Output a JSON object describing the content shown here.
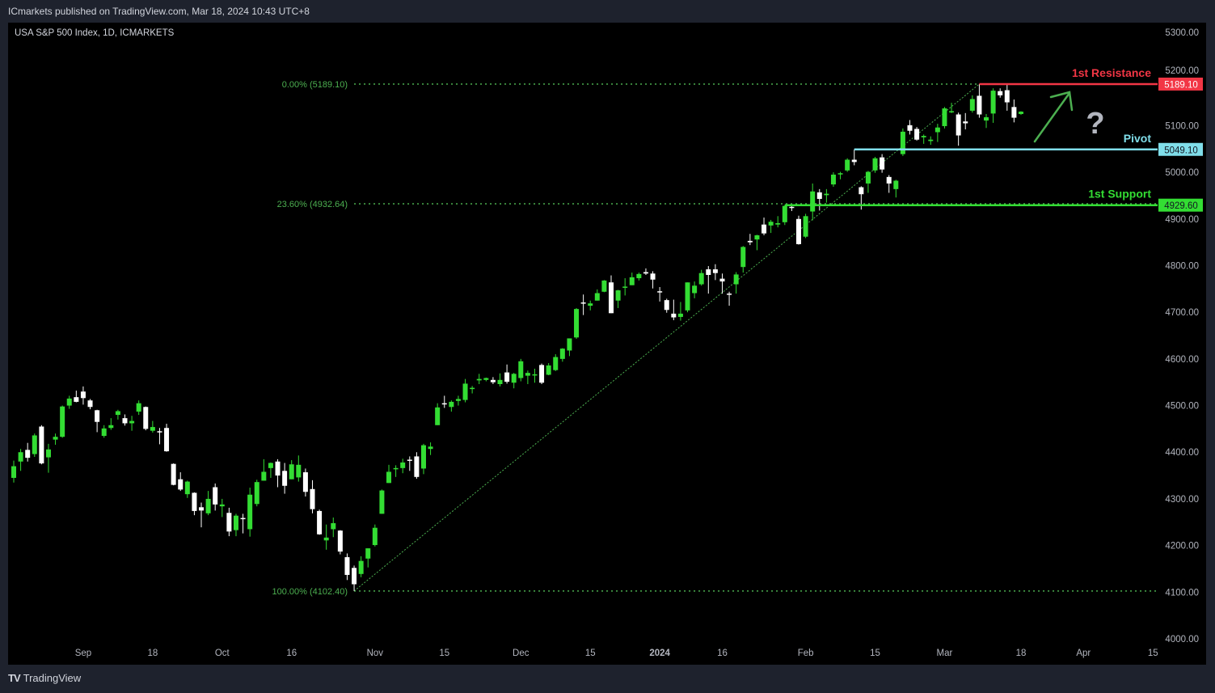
{
  "header": {
    "published": "ICmarkets published on TradingView.com, Mar 18, 2024 10:43 UTC+8"
  },
  "symbol_legend": "USA S&P 500 Index, 1D, ICMARKETS",
  "footer": {
    "logo_text": "TradingView"
  },
  "colors": {
    "bull": "#33dd33",
    "bear": "#ffffff",
    "fib": "#4caf50",
    "resistance": "#f23645",
    "pivot": "#80deea",
    "support": "#33dd33",
    "axis_text": "#b2b5be",
    "arrow": "#4caf50",
    "question": "#b2b5be"
  },
  "chart_data": {
    "type": "candlestick",
    "timeframe": "1D",
    "ylim": [
      4000,
      5300
    ],
    "y_ticks": [
      "5300.00",
      "5200.00",
      "5100.00",
      "5000.00",
      "4900.00",
      "4800.00",
      "4700.00",
      "4600.00",
      "4500.00",
      "4400.00",
      "4300.00",
      "4200.00",
      "4100.00",
      "4000.00"
    ],
    "x_ticks": [
      {
        "label": "Sep",
        "date": "2023-09-01"
      },
      {
        "label": "18",
        "date": "2023-09-18"
      },
      {
        "label": "Oct",
        "date": "2023-10-02"
      },
      {
        "label": "16",
        "date": "2023-10-16"
      },
      {
        "label": "Nov",
        "date": "2023-11-01"
      },
      {
        "label": "15",
        "date": "2023-11-15"
      },
      {
        "label": "Dec",
        "date": "2023-12-01"
      },
      {
        "label": "15",
        "date": "2023-12-15"
      },
      {
        "label": "2024",
        "date": "2024-01-02"
      },
      {
        "label": "16",
        "date": "2024-01-16"
      },
      {
        "label": "Feb",
        "date": "2024-02-01"
      },
      {
        "label": "15",
        "date": "2024-02-15"
      },
      {
        "label": "Mar",
        "date": "2024-03-01"
      },
      {
        "label": "18",
        "date": "2024-03-18"
      },
      {
        "label": "Apr",
        "date": "2024-04-01"
      },
      {
        "label": "15",
        "date": "2024-04-15"
      }
    ],
    "fib_levels": [
      {
        "label": "0.00% (5189.10)",
        "price": 5189.1,
        "extend_right": false
      },
      {
        "label": "23.60% (4932.64)",
        "price": 4932.64,
        "extend_right": true
      },
      {
        "label": "100.00% (4102.40)",
        "price": 4102.4,
        "extend_right": true
      }
    ],
    "fib_anchor": {
      "from_date": "2023-10-27",
      "from_price": 4102.4,
      "to_date": "2024-03-08",
      "to_price": 5189.1
    },
    "levels": [
      {
        "name": "1st Resistance",
        "price": 5189.1,
        "price_label": "5189.10",
        "from_date": "2024-03-08",
        "color_key": "resistance",
        "tag_text": "#ffffff"
      },
      {
        "name": "Pivot",
        "price": 5049.1,
        "price_label": "5049.10",
        "from_date": "2024-02-12",
        "color_key": "pivot",
        "tag_text": "#131722"
      },
      {
        "name": "1st Support",
        "price": 4929.6,
        "price_label": "4929.60",
        "from_date": "2024-01-29",
        "color_key": "support",
        "tag_text": "#131722"
      }
    ],
    "annotations": {
      "arrow": "up-right",
      "question_mark": "?"
    },
    "candles_columns": [
      "date",
      "open",
      "high",
      "low",
      "close"
    ],
    "candles": [
      [
        "2023-08-18",
        4345,
        4382,
        4335,
        4370
      ],
      [
        "2023-08-21",
        4380,
        4407,
        4360,
        4400
      ],
      [
        "2023-08-22",
        4405,
        4420,
        4380,
        4388
      ],
      [
        "2023-08-23",
        4396,
        4440,
        4390,
        4436
      ],
      [
        "2023-08-24",
        4455,
        4458,
        4374,
        4376
      ],
      [
        "2023-08-25",
        4389,
        4418,
        4356,
        4406
      ],
      [
        "2023-08-28",
        4427,
        4440,
        4416,
        4433
      ],
      [
        "2023-08-29",
        4433,
        4500,
        4431,
        4498
      ],
      [
        "2023-08-30",
        4500,
        4521,
        4493,
        4515
      ],
      [
        "2023-08-31",
        4518,
        4532,
        4507,
        4508
      ],
      [
        "2023-09-01",
        4530,
        4541,
        4502,
        4516
      ],
      [
        "2023-09-05",
        4511,
        4514,
        4492,
        4497
      ],
      [
        "2023-09-06",
        4490,
        4491,
        4443,
        4465
      ],
      [
        "2023-09-07",
        4435,
        4458,
        4431,
        4451
      ],
      [
        "2023-09-08",
        4452,
        4473,
        4448,
        4458
      ],
      [
        "2023-09-11",
        4480,
        4491,
        4470,
        4488
      ],
      [
        "2023-09-12",
        4473,
        4481,
        4457,
        4462
      ],
      [
        "2023-09-13",
        4462,
        4478,
        4446,
        4467
      ],
      [
        "2023-09-14",
        4487,
        4511,
        4480,
        4505
      ],
      [
        "2023-09-15",
        4497,
        4498,
        4447,
        4450
      ],
      [
        "2023-09-18",
        4446,
        4467,
        4442,
        4454
      ],
      [
        "2023-09-19",
        4445,
        4452,
        4417,
        4444
      ],
      [
        "2023-09-20",
        4452,
        4461,
        4401,
        4402
      ],
      [
        "2023-09-21",
        4375,
        4376,
        4329,
        4330
      ],
      [
        "2023-09-22",
        4342,
        4357,
        4317,
        4320
      ],
      [
        "2023-09-25",
        4310,
        4339,
        4302,
        4337
      ],
      [
        "2023-09-26",
        4313,
        4314,
        4265,
        4274
      ],
      [
        "2023-09-27",
        4282,
        4292,
        4239,
        4275
      ],
      [
        "2023-09-28",
        4269,
        4317,
        4265,
        4300
      ],
      [
        "2023-09-29",
        4325,
        4333,
        4275,
        4288
      ],
      [
        "2023-10-02",
        4284,
        4300,
        4261,
        4288
      ],
      [
        "2023-10-03",
        4270,
        4281,
        4220,
        4230
      ],
      [
        "2023-10-04",
        4233,
        4268,
        4220,
        4264
      ],
      [
        "2023-10-05",
        4259,
        4268,
        4226,
        4258
      ],
      [
        "2023-10-06",
        4235,
        4324,
        4219,
        4309
      ],
      [
        "2023-10-09",
        4289,
        4341,
        4284,
        4336
      ],
      [
        "2023-10-10",
        4339,
        4385,
        4339,
        4358
      ],
      [
        "2023-10-11",
        4366,
        4378,
        4345,
        4377
      ],
      [
        "2023-10-12",
        4380,
        4385,
        4325,
        4350
      ],
      [
        "2023-10-13",
        4360,
        4377,
        4311,
        4328
      ],
      [
        "2023-10-16",
        4342,
        4383,
        4342,
        4374
      ],
      [
        "2023-10-17",
        4346,
        4393,
        4337,
        4373
      ],
      [
        "2023-10-18",
        4357,
        4365,
        4305,
        4315
      ],
      [
        "2023-10-19",
        4321,
        4340,
        4269,
        4278
      ],
      [
        "2023-10-20",
        4274,
        4277,
        4223,
        4224
      ],
      [
        "2023-10-23",
        4211,
        4245,
        4191,
        4217
      ],
      [
        "2023-10-24",
        4235,
        4260,
        4218,
        4248
      ],
      [
        "2023-10-25",
        4232,
        4233,
        4181,
        4187
      ],
      [
        "2023-10-26",
        4175,
        4183,
        4126,
        4137
      ],
      [
        "2023-10-27",
        4152,
        4157,
        4102.4,
        4117
      ],
      [
        "2023-10-30",
        4139,
        4177,
        4132,
        4167
      ],
      [
        "2023-10-31",
        4172,
        4194,
        4153,
        4194
      ],
      [
        "2023-11-01",
        4201,
        4245,
        4198,
        4238
      ],
      [
        "2023-11-02",
        4268,
        4320,
        4268,
        4318
      ],
      [
        "2023-11-03",
        4334,
        4373,
        4334,
        4358
      ],
      [
        "2023-11-06",
        4364,
        4372,
        4347,
        4366
      ],
      [
        "2023-11-07",
        4366,
        4386,
        4355,
        4378
      ],
      [
        "2023-11-08",
        4384,
        4391,
        4360,
        4383
      ],
      [
        "2023-11-09",
        4391,
        4400,
        4343,
        4347
      ],
      [
        "2023-11-10",
        4365,
        4418,
        4353,
        4415
      ],
      [
        "2023-11-13",
        4407,
        4421,
        4394,
        4412
      ],
      [
        "2023-11-14",
        4458,
        4505,
        4458,
        4496
      ],
      [
        "2023-11-15",
        4505,
        4521,
        4495,
        4503
      ],
      [
        "2023-11-16",
        4497,
        4511,
        4487,
        4508
      ],
      [
        "2023-11-17",
        4510,
        4521,
        4500,
        4514
      ],
      [
        "2023-11-20",
        4512,
        4557,
        4507,
        4547
      ],
      [
        "2023-11-21",
        4538,
        4542,
        4526,
        4538
      ],
      [
        "2023-11-22",
        4554,
        4568,
        4546,
        4557
      ],
      [
        "2023-11-24",
        4555,
        4560,
        4552,
        4559
      ],
      [
        "2023-11-27",
        4555,
        4561,
        4546,
        4550
      ],
      [
        "2023-11-28",
        4546,
        4569,
        4541,
        4555
      ],
      [
        "2023-11-29",
        4571,
        4588,
        4547,
        4551
      ],
      [
        "2023-11-30",
        4549,
        4570,
        4537,
        4568
      ],
      [
        "2023-12-01",
        4559,
        4600,
        4552,
        4595
      ],
      [
        "2023-12-04",
        4564,
        4575,
        4546,
        4570
      ],
      [
        "2023-12-05",
        4567,
        4579,
        4549,
        4567
      ],
      [
        "2023-12-06",
        4587,
        4590,
        4546,
        4549
      ],
      [
        "2023-12-07",
        4566,
        4591,
        4565,
        4586
      ],
      [
        "2023-12-08",
        4576,
        4610,
        4574,
        4604
      ],
      [
        "2023-12-11",
        4600,
        4623,
        4594,
        4622
      ],
      [
        "2023-12-12",
        4618,
        4644,
        4606,
        4644
      ],
      [
        "2023-12-13",
        4646,
        4709,
        4643,
        4707
      ],
      [
        "2023-12-14",
        4721,
        4738,
        4694,
        4720
      ],
      [
        "2023-12-15",
        4714,
        4725,
        4704,
        4719
      ],
      [
        "2023-12-18",
        4725,
        4749,
        4725,
        4741
      ],
      [
        "2023-12-19",
        4744,
        4769,
        4743,
        4768
      ],
      [
        "2023-12-20",
        4764,
        4779,
        4698,
        4698
      ],
      [
        "2023-12-21",
        4725,
        4748,
        4709,
        4747
      ],
      [
        "2023-12-22",
        4753,
        4773,
        4736,
        4755
      ],
      [
        "2023-12-26",
        4758,
        4785,
        4758,
        4775
      ],
      [
        "2023-12-27",
        4773,
        4785,
        4768,
        4782
      ],
      [
        "2023-12-28",
        4786,
        4794,
        4780,
        4783
      ],
      [
        "2023-12-29",
        4783,
        4788,
        4751,
        4770
      ],
      [
        "2024-01-02",
        4745,
        4754,
        4723,
        4743
      ],
      [
        "2024-01-03",
        4726,
        4729,
        4699,
        4705
      ],
      [
        "2024-01-04",
        4697,
        4727,
        4683,
        4689
      ],
      [
        "2024-01-05",
        4690,
        4722,
        4682,
        4697
      ],
      [
        "2024-01-08",
        4704,
        4764,
        4700,
        4764
      ],
      [
        "2024-01-09",
        4741,
        4766,
        4730,
        4757
      ],
      [
        "2024-01-10",
        4760,
        4791,
        4757,
        4784
      ],
      [
        "2024-01-11",
        4792,
        4799,
        4740,
        4780
      ],
      [
        "2024-01-12",
        4792,
        4803,
        4769,
        4784
      ],
      [
        "2024-01-16",
        4772,
        4783,
        4740,
        4766
      ],
      [
        "2024-01-17",
        4740,
        4744,
        4714,
        4739
      ],
      [
        "2024-01-18",
        4760,
        4786,
        4740,
        4781
      ],
      [
        "2024-01-19",
        4797,
        4842,
        4785,
        4840
      ],
      [
        "2024-01-22",
        4853,
        4868,
        4844,
        4850
      ],
      [
        "2024-01-23",
        4856,
        4866,
        4833,
        4865
      ],
      [
        "2024-01-24",
        4888,
        4903,
        4865,
        4869
      ],
      [
        "2024-01-25",
        4886,
        4898,
        4870,
        4894
      ],
      [
        "2024-01-26",
        4888,
        4906,
        4882,
        4891
      ],
      [
        "2024-01-29",
        4893,
        4929.6,
        4887,
        4928
      ],
      [
        "2024-01-30",
        4926,
        4931,
        4917,
        4925
      ],
      [
        "2024-01-31",
        4900,
        4907,
        4845,
        4846
      ],
      [
        "2024-02-01",
        4862,
        4911,
        4859,
        4906
      ],
      [
        "2024-02-02",
        4916,
        4976,
        4897,
        4959
      ],
      [
        "2024-02-05",
        4957,
        4964,
        4918,
        4943
      ],
      [
        "2024-02-06",
        4951,
        4964,
        4935,
        4954
      ],
      [
        "2024-02-07",
        4974,
        5000,
        4969,
        4995
      ],
      [
        "2024-02-08",
        4996,
        5001,
        4985,
        4998
      ],
      [
        "2024-02-09",
        5004,
        5030,
        5001,
        5027
      ],
      [
        "2024-02-12",
        5027,
        5049.1,
        5015,
        5022
      ],
      [
        "2024-02-13",
        4968,
        4970,
        4920,
        4953
      ],
      [
        "2024-02-14",
        4976,
        5003,
        4956,
        5001
      ],
      [
        "2024-02-15",
        5004,
        5033,
        4999,
        5030
      ],
      [
        "2024-02-16",
        5032,
        5039,
        4999,
        5006
      ],
      [
        "2024-02-20",
        4990,
        4994,
        4956,
        4976
      ],
      [
        "2024-02-21",
        4964,
        4984,
        4946,
        4982
      ],
      [
        "2024-02-22",
        5039,
        5094,
        5035,
        5087
      ],
      [
        "2024-02-23",
        5101,
        5112,
        5081,
        5089
      ],
      [
        "2024-02-26",
        5093,
        5097,
        5068,
        5070
      ],
      [
        "2024-02-27",
        5075,
        5081,
        5061,
        5078
      ],
      [
        "2024-02-28",
        5067,
        5077,
        5059,
        5070
      ],
      [
        "2024-02-29",
        5086,
        5104,
        5065,
        5096
      ],
      [
        "2024-03-01",
        5099,
        5140,
        5094,
        5137
      ],
      [
        "2024-03-04",
        5131,
        5149,
        5127,
        5131
      ],
      [
        "2024-03-05",
        5124,
        5128,
        5057,
        5079
      ],
      [
        "2024-03-06",
        5109,
        5127,
        5092,
        5105
      ],
      [
        "2024-03-07",
        5132,
        5165,
        5128,
        5157
      ],
      [
        "2024-03-08",
        5164,
        5189.1,
        5117,
        5124
      ],
      [
        "2024-03-11",
        5111,
        5125,
        5095,
        5118
      ],
      [
        "2024-03-12",
        5126,
        5180,
        5106,
        5175
      ],
      [
        "2024-03-13",
        5174,
        5180,
        5160,
        5165
      ],
      [
        "2024-03-14",
        5176,
        5189,
        5132,
        5150
      ],
      [
        "2024-03-15",
        5140,
        5156,
        5107,
        5117
      ],
      [
        "2024-03-18",
        5125,
        5131,
        5123,
        5130
      ]
    ]
  }
}
